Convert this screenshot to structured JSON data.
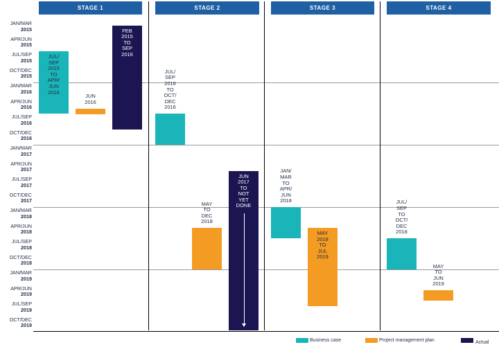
{
  "stages": [
    "STAGE 1",
    "STAGE 2",
    "STAGE 3",
    "STAGE 4"
  ],
  "time_axis": [
    {
      "period": "JAN/MAR",
      "year": "2015"
    },
    {
      "period": "APR/JUN",
      "year": "2015"
    },
    {
      "period": "JUL/SEP",
      "year": "2015"
    },
    {
      "period": "OCT/DEC",
      "year": "2015"
    },
    {
      "period": "JAN/MAR",
      "year": "2016"
    },
    {
      "period": "APR/JUN",
      "year": "2016"
    },
    {
      "period": "JUL/SEP",
      "year": "2016"
    },
    {
      "period": "OCT/DEC",
      "year": "2016"
    },
    {
      "period": "JAN/MAR",
      "year": "2017"
    },
    {
      "period": "APR/JUN",
      "year": "2017"
    },
    {
      "period": "JUL/SEP",
      "year": "2017"
    },
    {
      "period": "OCT/DEC",
      "year": "2017"
    },
    {
      "period": "JAN/MAR",
      "year": "2018"
    },
    {
      "period": "APR/JUN",
      "year": "2018"
    },
    {
      "period": "JUL/SEP",
      "year": "2018"
    },
    {
      "period": "OCT/DEC",
      "year": "2018"
    },
    {
      "period": "JAN/MAR",
      "year": "2019"
    },
    {
      "period": "APR/JUN",
      "year": "2019"
    },
    {
      "period": "JUL/SEP",
      "year": "2019"
    },
    {
      "period": "OCT/DEC",
      "year": "2019"
    }
  ],
  "bars": [
    {
      "stage": "STAGE 1",
      "kind": "business_case",
      "label": "JUL/\nSEP\n2015\nTO\nAPR/\nJUN\n2016",
      "start": "2015-07",
      "end": "2016-06"
    },
    {
      "stage": "STAGE 1",
      "kind": "project_management_plan",
      "label": "JUN\n2016",
      "start": "2016-06",
      "end": "2016-06"
    },
    {
      "stage": "STAGE 1",
      "kind": "actual",
      "label": "FEB\n2015\nTO\nSEP\n2016",
      "start": "2015-02",
      "end": "2016-09"
    },
    {
      "stage": "STAGE 2",
      "kind": "business_case",
      "label": "JUL/\nSEP\n2016\nTO\nOCT/\nDEC\n2016",
      "start": "2016-07",
      "end": "2016-12"
    },
    {
      "stage": "STAGE 2",
      "kind": "project_management_plan",
      "label": "MAY\nTO\nDEC\n2018",
      "start": "2018-05",
      "end": "2018-12"
    },
    {
      "stage": "STAGE 2",
      "kind": "actual",
      "label": "JUN\n2017\nTO\nNOT\nYET\nDONE",
      "start": "2017-06",
      "end": "2019-12",
      "ongoing": true
    },
    {
      "stage": "STAGE 3",
      "kind": "business_case",
      "label": "JAN/\nMAR\nTO\nAPR/\nJUN\n2018",
      "start": "2018-01",
      "end": "2018-06"
    },
    {
      "stage": "STAGE 3",
      "kind": "project_management_plan",
      "label": "MAY\n2018\nTO\nJUL\n2019",
      "start": "2018-05",
      "end": "2019-07"
    },
    {
      "stage": "STAGE 4",
      "kind": "business_case",
      "label": "JUL/\nSEP\nTO\nOCT/\nDEC\n2018",
      "start": "2018-07",
      "end": "2018-12"
    },
    {
      "stage": "STAGE 4",
      "kind": "project_management_plan",
      "label": "MAY\nTO\nJUN\n2019",
      "start": "2019-05",
      "end": "2019-06"
    }
  ],
  "legend": {
    "business_case": "Business case",
    "project_management_plan": "Project management plan",
    "actual": "Actual"
  },
  "colors": {
    "stage_header": "#1f5fa3",
    "business_case": "#19b5b8",
    "project_management_plan": "#f39b22",
    "actual": "#1b1651"
  }
}
